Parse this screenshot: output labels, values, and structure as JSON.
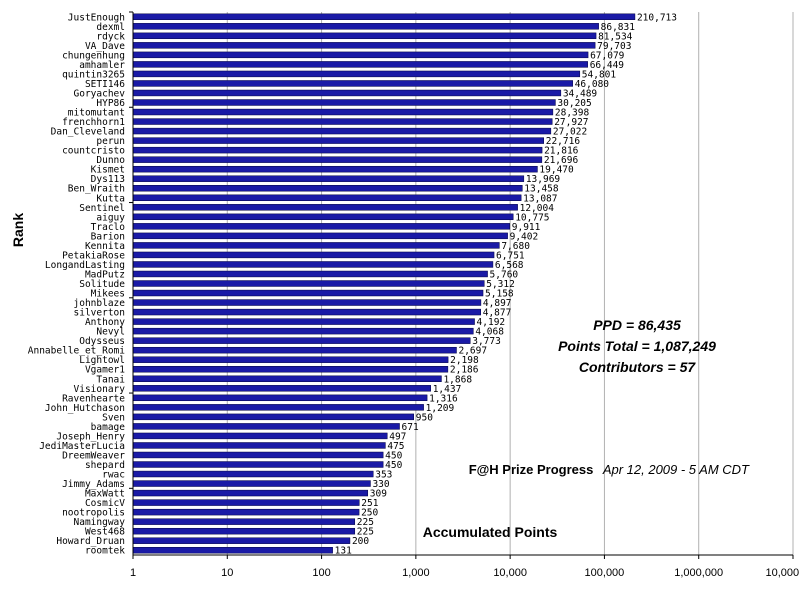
{
  "chart_data": {
    "type": "bar",
    "orientation": "horizontal",
    "x_scale": "log",
    "xlim": [
      1,
      10000000
    ],
    "grid": "vertical",
    "bar_color": "#1a1aa6",
    "ylabel": "Rank",
    "xlabel": "Accumulated Points",
    "x_ticks": [
      "1",
      "10",
      "100",
      "1,000",
      "10,000",
      "100,000",
      "1,000,000",
      "10,000,000"
    ],
    "categories": [
      "JustEnough",
      "dexml",
      "rdyck",
      "VA_Dave",
      "chungenhung",
      "amhamler",
      "quintin3265",
      "SETI146",
      "Goryachev",
      "HYP86",
      "mitomutant",
      "frenchhorn1",
      "Dan_Cleveland",
      "perun",
      "countcristo",
      "Dunno",
      "Kismet",
      "Dys113",
      "Ben_Wraith",
      "Kutta",
      "Sentinel",
      "aiguy",
      "Traclo",
      "Barion",
      "Kennita",
      "PetakiaRose",
      "LongandLasting",
      "MadPutz",
      "Solitude",
      "Mikees",
      "johnblaze",
      "silverton",
      "Anthony",
      "Nevyl",
      "Odysseus",
      "Annabelle_et_Romi",
      "Lightowl",
      "Vgamer1",
      "Tanai",
      "Visionary",
      "Ravenhearte",
      "John_Hutchason",
      "Sven",
      "bamage",
      "Joseph_Henry",
      "JediMasterLucia",
      "DreemWeaver",
      "shepard",
      "rwac",
      "Jimmy_Adams",
      "MaxWatt",
      "CosmicV",
      "nootropolis",
      "Namingway",
      "West468",
      "Howard_Druan",
      "roomtek"
    ],
    "values": [
      210713,
      86831,
      81534,
      79703,
      67079,
      66449,
      54801,
      46080,
      34489,
      30205,
      28398,
      27927,
      27022,
      22716,
      21816,
      21696,
      19470,
      13969,
      13458,
      13087,
      12004,
      10775,
      9911,
      9402,
      7680,
      6751,
      6568,
      5760,
      5312,
      5158,
      4897,
      4877,
      4192,
      4068,
      3773,
      2697,
      2198,
      2186,
      1868,
      1437,
      1316,
      1209,
      950,
      671,
      497,
      475,
      450,
      450,
      353,
      330,
      309,
      251,
      250,
      225,
      225,
      200,
      131
    ],
    "value_labels": [
      "210,713",
      "86,831",
      "81,534",
      "79,703",
      "67,079",
      "66,449",
      "54,801",
      "46,080",
      "34,489",
      "30,205",
      "28,398",
      "27,927",
      "27,022",
      "22,716",
      "21,816",
      "21,696",
      "19,470",
      "13,969",
      "13,458",
      "13,087",
      "12,004",
      "10,775",
      "9,911",
      "9,402",
      "7,680",
      "6,751",
      "6,568",
      "5,760",
      "5,312",
      "5,158",
      "4,897",
      "4,877",
      "4,192",
      "4,068",
      "3,773",
      "2,697",
      "2,198",
      "2,186",
      "1,868",
      "1,437",
      "1,316",
      "1,209",
      "950",
      "671",
      "497",
      "475",
      "450",
      "450",
      "353",
      "330",
      "309",
      "251",
      "250",
      "225",
      "225",
      "200",
      "131"
    ]
  },
  "annotations": {
    "ppd": "PPD = 86,435",
    "points_total": "Points Total = 1,087,249",
    "contributors": "Contributors = 57",
    "prize_title": "F@H Prize Progress",
    "prize_date": "Apr 12, 2009 - 5 AM CDT"
  }
}
